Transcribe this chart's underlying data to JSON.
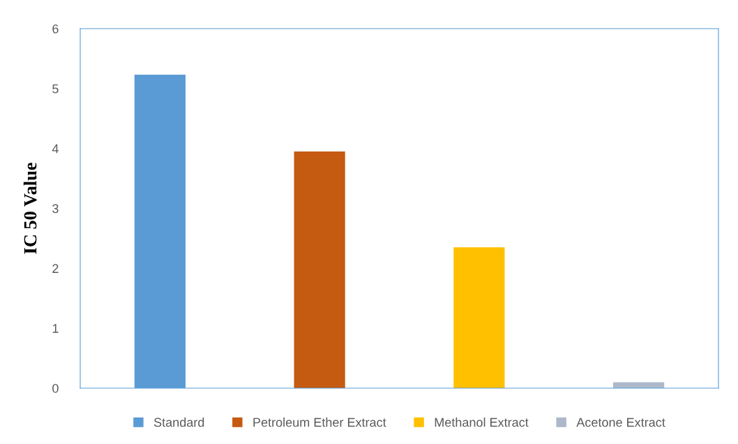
{
  "chart_data": {
    "type": "bar",
    "ylabel": "IC 50 Value",
    "categories": [
      null,
      null,
      null,
      null
    ],
    "series": [
      {
        "name": "Standard",
        "color": "#5b9bd5",
        "values": [
          5.23,
          null,
          null,
          null
        ]
      },
      {
        "name": "Petroleum Ether Extract",
        "color": "#c55a11",
        "values": [
          null,
          3.95,
          null,
          null
        ]
      },
      {
        "name": "Methanol Extract",
        "color": "#ffc000",
        "values": [
          null,
          null,
          2.35,
          null
        ]
      },
      {
        "name": "Acetone Extract",
        "color": "#adb9ca",
        "values": [
          null,
          null,
          null,
          0.1
        ]
      }
    ],
    "ylim": [
      0,
      6
    ],
    "yticks": [
      0,
      1,
      2,
      3,
      4,
      5,
      6
    ],
    "grid": false,
    "legend": "bottom"
  }
}
